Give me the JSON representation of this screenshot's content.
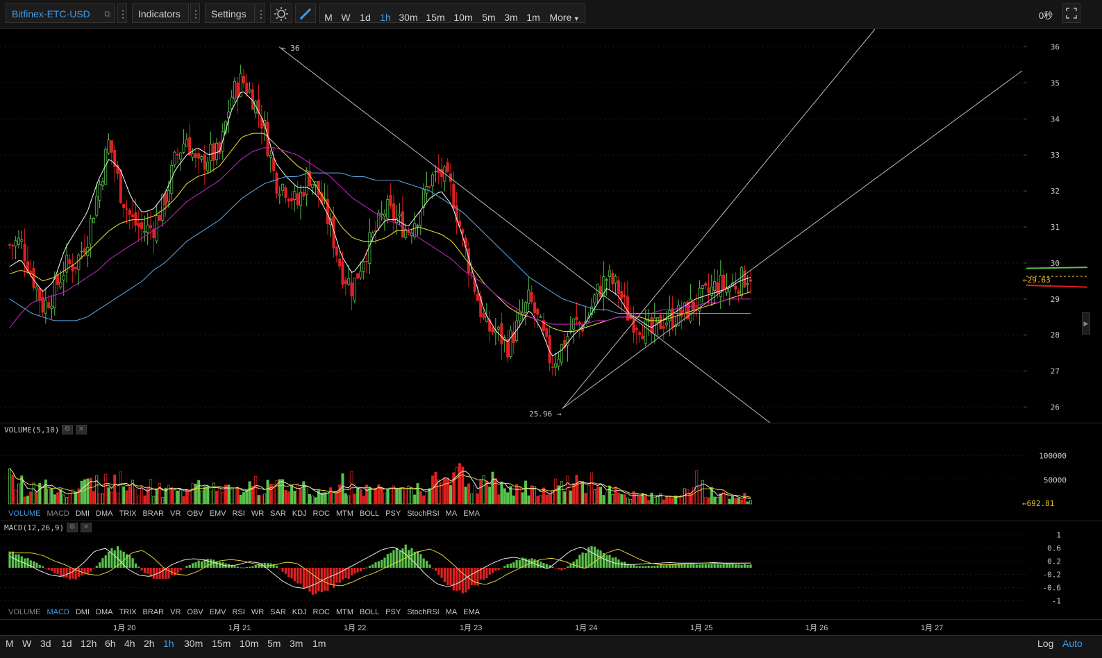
{
  "toolbar": {
    "symbol": "Bitfinex-ETC-USD",
    "indicators_label": "Indicators",
    "settings_label": "Settings",
    "periods": [
      "M",
      "W",
      "1d",
      "1h",
      "30m",
      "15m",
      "10m",
      "5m",
      "3m",
      "1m"
    ],
    "active_period": "1h",
    "more_label": "More",
    "countdown": "0秒"
  },
  "price_annotations": {
    "high": "36",
    "low": "25.96",
    "last": "29.63",
    "volume_last": "692.81"
  },
  "panels": {
    "volume_title": "VOLUME(5,10)",
    "macd_title": "MACD(12,26,9)"
  },
  "indicator_tabs": [
    "VOLUME",
    "MACD",
    "DMI",
    "DMA",
    "TRIX",
    "BRAR",
    "VR",
    "OBV",
    "EMV",
    "RSI",
    "WR",
    "SAR",
    "KDJ",
    "ROC",
    "MTM",
    "BOLL",
    "PSY",
    "StochRSI",
    "MA",
    "EMA"
  ],
  "bottom": {
    "periods": [
      "M",
      "W",
      "3d",
      "1d",
      "12h",
      "6h",
      "4h",
      "2h",
      "1h",
      "30m",
      "15m",
      "10m",
      "5m",
      "3m",
      "1m"
    ],
    "active_period": "1h",
    "log_label": "Log",
    "auto_label": "Auto"
  },
  "colors": {
    "up": "#59c34a",
    "down": "#e02020",
    "ma_white": "#e8e8e8",
    "ma_yellow": "#e6d23a",
    "ma_magenta": "#c020c0",
    "ma_blue": "#5a9fd8",
    "accent": "#3d9be9"
  },
  "chart_data": [
    {
      "type": "candlestick",
      "series_name": "Bitfinex-ETC-USD",
      "x_tick_labels": [
        "1月 20",
        "1月 21",
        "1月 22",
        "1月 23",
        "1月 24",
        "1月 25",
        "1月 26",
        "1月 27"
      ],
      "y_ticks": [
        26,
        27,
        28,
        29,
        30,
        31,
        32,
        33,
        34,
        35,
        36
      ],
      "ylim": [
        25.7,
        36.3
      ],
      "high_marker": 36,
      "low_marker": 25.96,
      "last_price": 29.63,
      "close_path": [
        30.5,
        30.6,
        29.7,
        28.8,
        29.2,
        29.9,
        30.0,
        30.7,
        32.0,
        33.4,
        32.0,
        31.2,
        30.9,
        31.0,
        31.7,
        32.9,
        33.5,
        32.6,
        33.0,
        33.0,
        34.6,
        35.1,
        34.6,
        33.8,
        32.3,
        32.1,
        31.6,
        32.5,
        31.9,
        31.0,
        29.8,
        29.3,
        30.2,
        30.8,
        31.5,
        31.2,
        30.9,
        31.4,
        32.3,
        32.5,
        32.0,
        30.6,
        29.4,
        28.2,
        28.1,
        27.7,
        28.3,
        29.0,
        28.2,
        27.2,
        27.7,
        28.3,
        28.3,
        29.1,
        29.6,
        29.3,
        28.5,
        28.3,
        28.0,
        28.4,
        28.5,
        28.6,
        28.9,
        29.1,
        29.4,
        29.3,
        29.5,
        29.7
      ],
      "moving_averages": [
        {
          "color": "#e8e8e8",
          "path": [
            29.9,
            30.1,
            29.6,
            29.2,
            29.5,
            30.4,
            30.9,
            31.4,
            32.3,
            32.9,
            32.6,
            31.8,
            31.4,
            31.5,
            31.9,
            32.6,
            33.0,
            33.2,
            33.0,
            33.1,
            34.2,
            34.8,
            34.5,
            33.9,
            32.8,
            32.4,
            32.1,
            32.1,
            31.8,
            31.2,
            30.2,
            29.7,
            30.1,
            30.8,
            31.2,
            31.2,
            31.0,
            31.4,
            31.8,
            32.0,
            31.6,
            30.7,
            29.6,
            28.6,
            28.1,
            27.8,
            28.2,
            28.7,
            28.2,
            27.4,
            27.6,
            28.0,
            28.3,
            28.8,
            29.3,
            29.1,
            28.6,
            28.4,
            28.2,
            28.4,
            28.6,
            28.8,
            29.0,
            29.1,
            29.2,
            29.3,
            29.5,
            29.6
          ]
        },
        {
          "color": "#e6d23a",
          "path": [
            29.7,
            29.8,
            29.7,
            29.5,
            29.6,
            29.8,
            30.0,
            30.3,
            30.6,
            30.9,
            31.1,
            31.2,
            31.2,
            31.3,
            31.5,
            31.8,
            32.2,
            32.4,
            32.5,
            32.7,
            33.1,
            33.5,
            33.6,
            33.6,
            33.3,
            33.0,
            32.7,
            32.5,
            32.0,
            31.5,
            31.0,
            30.7,
            30.6,
            30.6,
            30.7,
            30.9,
            30.9,
            31.0,
            30.9,
            30.8,
            30.6,
            30.2,
            29.8,
            29.4,
            29.1,
            28.8,
            28.6,
            28.5,
            28.4,
            28.2,
            28.1,
            28.1,
            28.2,
            28.3,
            28.4,
            28.5,
            28.5,
            28.5,
            28.4,
            28.4,
            28.5,
            28.6,
            28.7,
            28.8,
            28.9,
            29.0,
            29.1,
            29.2
          ]
        },
        {
          "color": "#c020c0",
          "path": [
            28.2,
            28.6,
            28.9,
            29.0,
            29.1,
            29.2,
            29.4,
            29.6,
            29.8,
            30.1,
            30.3,
            30.5,
            30.7,
            30.9,
            31.1,
            31.4,
            31.7,
            31.9,
            32.1,
            32.3,
            32.6,
            32.9,
            33.1,
            33.2,
            33.2,
            33.1,
            33.0,
            32.8,
            32.6,
            32.4,
            32.1,
            31.8,
            31.6,
            31.4,
            31.2,
            31.1,
            30.9,
            30.7,
            30.5,
            30.3,
            30.1,
            29.8,
            29.6,
            29.4,
            29.1,
            28.9,
            28.7,
            28.5,
            28.4,
            28.3,
            28.3,
            28.3,
            28.3,
            28.4,
            28.4,
            28.5,
            28.5,
            28.6,
            28.6,
            28.7,
            28.7,
            28.8,
            28.8,
            28.9,
            28.9,
            29.0,
            29.0,
            29.0
          ]
        },
        {
          "color": "#5a9fd8",
          "path": [
            29.0,
            28.8,
            28.6,
            28.5,
            28.4,
            28.4,
            28.4,
            28.5,
            28.7,
            28.9,
            29.1,
            29.3,
            29.5,
            29.8,
            30.0,
            30.3,
            30.6,
            30.8,
            31.0,
            31.2,
            31.5,
            31.8,
            32.0,
            32.2,
            32.3,
            32.4,
            32.4,
            32.5,
            32.5,
            32.5,
            32.5,
            32.4,
            32.4,
            32.3,
            32.3,
            32.3,
            32.2,
            32.1,
            32.0,
            31.8,
            31.6,
            31.4,
            31.1,
            30.8,
            30.5,
            30.2,
            29.9,
            29.6,
            29.4,
            29.2,
            29.0,
            28.9,
            28.8,
            28.7,
            28.7,
            28.6,
            28.6,
            28.6,
            28.6,
            28.6,
            28.6,
            28.6,
            28.6,
            28.6,
            28.6,
            28.6,
            28.6,
            28.6
          ]
        }
      ]
    },
    {
      "type": "bar",
      "series_name": "VOLUME(5,10)",
      "y_ticks": [
        50000,
        100000
      ],
      "last_value": 692.81,
      "profile": [
        50000,
        40000,
        30000,
        45000,
        35000,
        30000,
        30000,
        40000,
        45000,
        50000,
        45000,
        42000,
        40000,
        35000,
        32000,
        30000,
        30000,
        35000,
        30000,
        28000,
        30000,
        38000,
        40000,
        35000,
        42000,
        40000,
        38000,
        30000,
        28000,
        30000,
        35000,
        30000,
        28000,
        30000,
        32000,
        30000,
        30000,
        35000,
        38000,
        50000,
        60000,
        55000,
        48000,
        40000,
        35000,
        30000,
        35000,
        32000,
        30000,
        32000,
        40000,
        45000,
        48000,
        42000,
        32000,
        28000,
        22000,
        18000,
        16000,
        15000,
        18000,
        22000,
        30000,
        28000,
        22000,
        16000,
        12000,
        8000
      ]
    },
    {
      "type": "bar",
      "series_name": "MACD(12,26,9)",
      "y_ticks": [
        -1,
        -0.6,
        -0.2,
        0.2,
        0.6,
        1
      ],
      "ylim": [
        -1.05,
        1.05
      ],
      "histogram_profile": [
        0.5,
        0.4,
        0.2,
        0.05,
        -0.15,
        -0.3,
        -0.35,
        -0.2,
        0.1,
        0.5,
        0.6,
        0.3,
        -0.1,
        -0.3,
        -0.35,
        -0.2,
        0.05,
        0.2,
        0.25,
        0.2,
        0.1,
        0.0,
        0.05,
        0.15,
        0.1,
        -0.2,
        -0.5,
        -0.7,
        -0.75,
        -0.6,
        -0.4,
        -0.25,
        -0.05,
        0.15,
        0.35,
        0.55,
        0.65,
        0.45,
        0.1,
        -0.3,
        -0.6,
        -0.7,
        -0.55,
        -0.3,
        -0.1,
        0.1,
        0.25,
        0.3,
        0.2,
        0.05,
        -0.1,
        0.2,
        0.5,
        0.65,
        0.45,
        0.25,
        0.1,
        0.05,
        0.06,
        0.08,
        0.1,
        0.12,
        0.1,
        0.1,
        0.1,
        0.12,
        0.1,
        0.1
      ]
    }
  ]
}
